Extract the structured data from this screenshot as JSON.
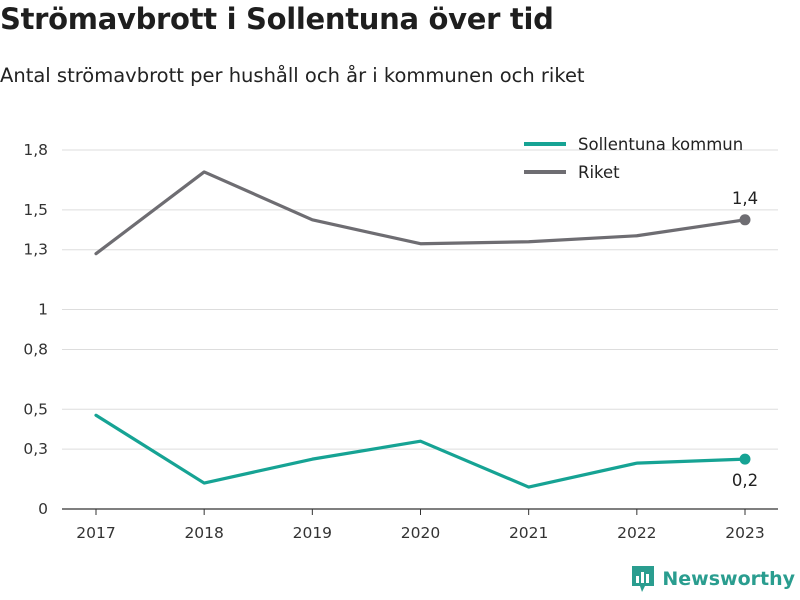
{
  "title": "Strömavbrott i Sollentuna över tid",
  "subtitle": "Antal strömavbrott per hushåll och år i kommunen och riket",
  "brand": "Newsworthy",
  "colors": {
    "sollentuna": "#16a394",
    "riket": "#6e6d72",
    "grid": "#dddddd",
    "axis": "#333333"
  },
  "chart_data": {
    "type": "line",
    "x": [
      "2017",
      "2018",
      "2019",
      "2020",
      "2021",
      "2022",
      "2023"
    ],
    "series": [
      {
        "name": "Sollentuna kommun",
        "values": [
          0.47,
          0.13,
          0.25,
          0.34,
          0.11,
          0.23,
          0.25
        ],
        "end_label": "0,2"
      },
      {
        "name": "Riket",
        "values": [
          1.28,
          1.69,
          1.45,
          1.33,
          1.34,
          1.37,
          1.45
        ],
        "end_label": "1,4"
      }
    ],
    "yticks": [
      {
        "value": 0,
        "label": "0"
      },
      {
        "value": 0.3,
        "label": "0,3"
      },
      {
        "value": 0.5,
        "label": "0,5"
      },
      {
        "value": 0.8,
        "label": "0,8"
      },
      {
        "value": 1.0,
        "label": "1"
      },
      {
        "value": 1.3,
        "label": "1,3"
      },
      {
        "value": 1.5,
        "label": "1,5"
      },
      {
        "value": 1.8,
        "label": "1,8"
      }
    ],
    "ylim": [
      0,
      1.8
    ],
    "grid": true,
    "legend_position": "top-right"
  }
}
